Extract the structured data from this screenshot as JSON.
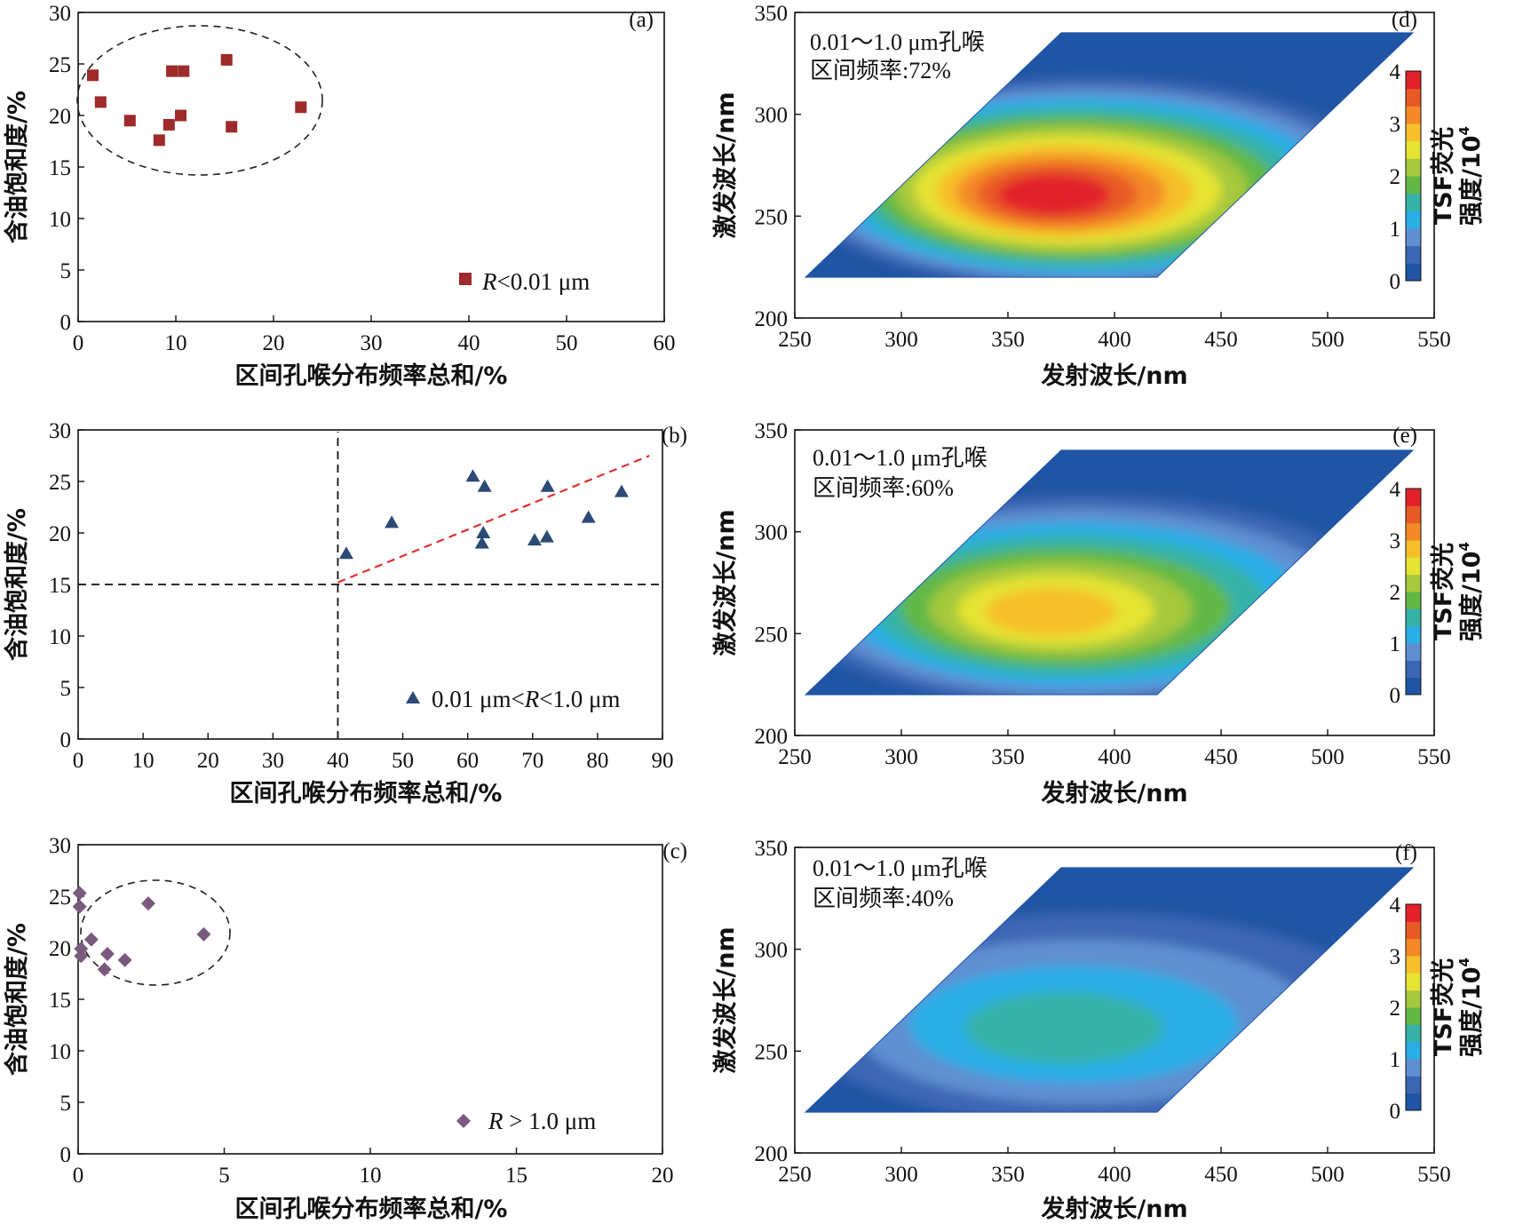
{
  "chart_data": [
    {
      "id": "a",
      "type": "scatter",
      "panel_label": "(a)",
      "xlabel": "区间孔喉分布频率总和/%",
      "ylabel": "含油饱和度/%",
      "xlim": [
        0,
        60
      ],
      "ylim": [
        0,
        30
      ],
      "xticks": [
        "0",
        "10",
        "20",
        "30",
        "40",
        "50",
        "60"
      ],
      "yticks": [
        "0",
        "5",
        "10",
        "15",
        "20",
        "25",
        "30"
      ],
      "series": [
        {
          "name": "R<0.01 μm",
          "marker": "square",
          "color": "#9e2a2b",
          "points": [
            [
              1.5,
              23.9
            ],
            [
              2.3,
              21.3
            ],
            [
              5.3,
              19.5
            ],
            [
              8.3,
              17.6
            ],
            [
              9.3,
              19.1
            ],
            [
              9.6,
              24.3
            ],
            [
              10.5,
              20.0
            ],
            [
              10.8,
              24.3
            ],
            [
              15.2,
              25.4
            ],
            [
              15.7,
              18.9
            ],
            [
              22.8,
              20.8
            ]
          ]
        }
      ],
      "annotations": [
        "dashed ellipse around cluster"
      ],
      "legend": {
        "italic": "R",
        "text": "<0.01 μm"
      }
    },
    {
      "id": "b",
      "type": "scatter",
      "panel_label": "(b)",
      "xlabel": "区间孔喉分布频率总和/%",
      "ylabel": "含油饱和度/%",
      "xlim": [
        0,
        90
      ],
      "ylim": [
        0,
        30
      ],
      "xticks": [
        "0",
        "10",
        "20",
        "30",
        "40",
        "50",
        "60",
        "70",
        "80",
        "90"
      ],
      "yticks": [
        "0",
        "5",
        "10",
        "15",
        "20",
        "25",
        "30"
      ],
      "series": [
        {
          "name": "0.01 μm<R<1.0 μm",
          "marker": "triangle",
          "color": "#2c4a75",
          "points": [
            [
              41.3,
              18.0
            ],
            [
              48.3,
              21.0
            ],
            [
              60.8,
              25.5
            ],
            [
              62.2,
              19.0
            ],
            [
              62.4,
              20.0
            ],
            [
              62.6,
              24.5
            ],
            [
              70.3,
              19.3
            ],
            [
              72.2,
              19.6
            ],
            [
              72.3,
              24.5
            ],
            [
              78.6,
              21.5
            ],
            [
              83.7,
              24.0
            ]
          ]
        }
      ],
      "reference_lines": {
        "vertical_x": 40,
        "horizontal_y": 15,
        "trend_start": [
          40,
          15.2
        ],
        "trend_end": [
          88,
          27.5
        ]
      },
      "legend": {
        "prefix": "0.01 μm<",
        "italic": "R",
        "suffix": "<1.0 μm"
      }
    },
    {
      "id": "c",
      "type": "scatter",
      "panel_label": "(c)",
      "xlabel": "区间孔喉分布频率总和/%",
      "ylabel": "含油饱和度/%",
      "xlim": [
        0,
        20
      ],
      "ylim": [
        0,
        30
      ],
      "xticks": [
        "0",
        "5",
        "10",
        "15",
        "20"
      ],
      "yticks": [
        "0",
        "5",
        "10",
        "15",
        "20",
        "25",
        "30"
      ],
      "series": [
        {
          "name": "R > 1.0 μm",
          "marker": "diamond",
          "color": "#7a5a7e",
          "points": [
            [
              0.05,
              25.3
            ],
            [
              0.05,
              24.0
            ],
            [
              0.1,
              19.9
            ],
            [
              0.1,
              19.2
            ],
            [
              0.45,
              20.8
            ],
            [
              0.9,
              17.9
            ],
            [
              1.0,
              19.4
            ],
            [
              1.6,
              18.8
            ],
            [
              2.4,
              24.3
            ],
            [
              4.3,
              21.3
            ]
          ]
        }
      ],
      "annotations": [
        "dashed ellipse around cluster"
      ],
      "legend": {
        "italic": "R",
        "text": " > 1.0 μm"
      }
    },
    {
      "id": "d",
      "type": "heatmap",
      "panel_label": "(d)",
      "xlabel": "发射波长/nm",
      "ylabel": "激发波长/nm",
      "xlim": [
        250,
        550
      ],
      "ylim": [
        200,
        350
      ],
      "xticks": [
        "250",
        "300",
        "350",
        "400",
        "450",
        "500",
        "550"
      ],
      "yticks": [
        "200",
        "250",
        "300",
        "350"
      ],
      "annotation_lines": [
        "0.01～1.0 μm孔喉",
        "区间频率:72%"
      ],
      "peak": {
        "emission_nm": 370,
        "excitation_nm": 260,
        "intensity_1e4": 4.0
      },
      "colorbar": {
        "label_line1": "TSF荧光",
        "label_line2": "强度/10",
        "label_sup": "4",
        "ticks": [
          "0",
          "1",
          "2",
          "3",
          "4"
        ]
      }
    },
    {
      "id": "e",
      "type": "heatmap",
      "panel_label": "(e)",
      "xlabel": "发射波长/nm",
      "ylabel": "激发波长/nm",
      "xlim": [
        250,
        550
      ],
      "ylim": [
        200,
        350
      ],
      "xticks": [
        "250",
        "300",
        "350",
        "400",
        "450",
        "500",
        "550"
      ],
      "yticks": [
        "200",
        "250",
        "300",
        "350"
      ],
      "annotation_lines": [
        "0.01～1.0 μm孔喉",
        "区间频率:60%"
      ],
      "peak": {
        "emission_nm": 368,
        "excitation_nm": 260,
        "intensity_1e4": 3.0
      },
      "colorbar": {
        "label_line1": "TSF荧光",
        "label_line2": "强度/10",
        "label_sup": "4",
        "ticks": [
          "0",
          "1",
          "2",
          "3",
          "4"
        ]
      }
    },
    {
      "id": "f",
      "type": "heatmap",
      "panel_label": "(f)",
      "xlabel": "发射波长/nm",
      "ylabel": "激发波长/nm",
      "xlim": [
        250,
        550
      ],
      "ylim": [
        200,
        350
      ],
      "xticks": [
        "250",
        "300",
        "350",
        "400",
        "450",
        "500",
        "550"
      ],
      "yticks": [
        "200",
        "250",
        "300",
        "350"
      ],
      "annotation_lines": [
        "0.01～1.0 μm孔喉",
        "区间频率:40%"
      ],
      "peak": {
        "emission_nm": 372,
        "excitation_nm": 260,
        "intensity_1e4": 1.35
      },
      "colorbar": {
        "label_line1": "TSF荧光",
        "label_line2": "强度/10",
        "label_sup": "4",
        "ticks": [
          "0",
          "1",
          "2",
          "3",
          "4"
        ]
      }
    }
  ],
  "colors": {
    "contour_levels": [
      "#1f55a4",
      "#3c66b4",
      "#5f8fd0",
      "#29aee6",
      "#35b3a8",
      "#62b846",
      "#a6c93e",
      "#e6e433",
      "#f6c02a",
      "#f48a26",
      "#e85a25",
      "#e2222b"
    ],
    "axis": "#111111",
    "trend": "#e03131"
  }
}
